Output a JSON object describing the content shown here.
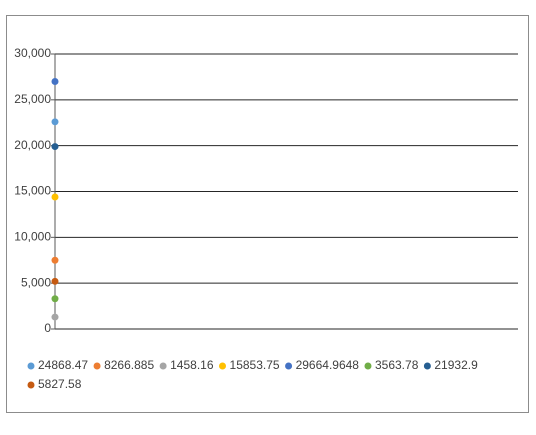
{
  "chart_data": {
    "type": "line",
    "categories": [
      null
    ],
    "series": [
      {
        "name": "24868.47",
        "color": "#5b9bd5",
        "values": [
          22600
        ]
      },
      {
        "name": "8266.885",
        "color": "#ed7d31",
        "values": [
          7500
        ]
      },
      {
        "name": "1458.16",
        "color": "#a5a5a5",
        "values": [
          1300
        ]
      },
      {
        "name": "15853.75",
        "color": "#ffc000",
        "values": [
          14400
        ]
      },
      {
        "name": "29664.9648",
        "color": "#4472c4",
        "values": [
          27000
        ]
      },
      {
        "name": "3563.78",
        "color": "#70ad47",
        "values": [
          3300
        ]
      },
      {
        "name": "21932.9",
        "color": "#255e91",
        "values": [
          19900
        ]
      },
      {
        "name": "5827.58",
        "color": "#c55a11",
        "values": [
          5200
        ]
      }
    ],
    "ylim": [
      0,
      30000
    ],
    "yticks": [
      {
        "value": 0,
        "label": "0"
      },
      {
        "value": 5000,
        "label": "5,000"
      },
      {
        "value": 10000,
        "label": "10,000"
      },
      {
        "value": 15000,
        "label": "15,000"
      },
      {
        "value": 20000,
        "label": "20,000"
      },
      {
        "value": 25000,
        "label": "25,000"
      },
      {
        "value": 30000,
        "label": "30,000"
      }
    ],
    "grid": true,
    "legend": "bottom"
  }
}
